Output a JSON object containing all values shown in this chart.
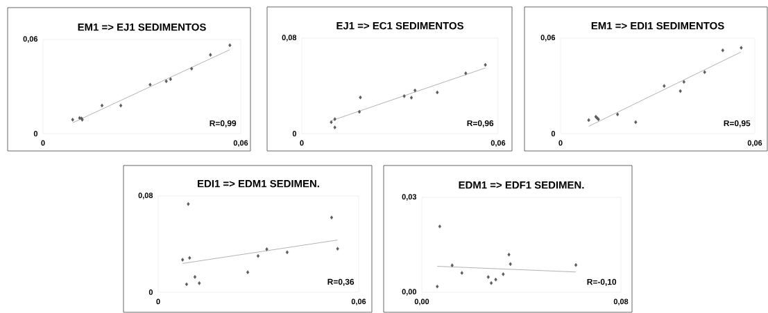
{
  "chart_data": [
    {
      "type": "scatter",
      "title": "EM1 => EJ1 SEDIMENTOS",
      "marker": "diamond",
      "xlim": [
        0,
        0.06
      ],
      "ylim": [
        0,
        0.06
      ],
      "xticks": [
        0,
        {
          "value": 0.06,
          "label": "0,06"
        }
      ],
      "yticks": [
        0,
        {
          "value": 0.06,
          "label": "0,06"
        }
      ],
      "annotations": [
        "R=0,99"
      ],
      "series": [
        {
          "color": "#5a5a5a",
          "x": [
            0.009,
            0.0111,
            0.0117,
            0.0119,
            0.0179,
            0.0236,
            0.0325,
            0.0374,
            0.0387,
            0.0451,
            0.0508,
            0.0567
          ],
          "values": [
            0.0089,
            0.01,
            0.0097,
            0.0089,
            0.0179,
            0.0179,
            0.0312,
            0.0334,
            0.0347,
            0.0414,
            0.0502,
            0.0563
          ]
        },
        {
          "type": "line",
          "color": "#7f7f7f",
          "marker": "none",
          "x": [
            0.009,
            0.0567
          ],
          "values": [
            0.0069,
            0.0535
          ]
        }
      ]
    },
    {
      "type": "scatter",
      "title": "EJ1 => EC1 SEDIMENTOS",
      "marker": "diamond",
      "xlim": [
        0,
        0.06
      ],
      "ylim": [
        0,
        0.08
      ],
      "xticks": [
        0,
        {
          "value": 0.06,
          "label": "0,06"
        }
      ],
      "yticks": [
        0,
        {
          "value": 0.08,
          "label": "0,08"
        }
      ],
      "annotations": [
        "R=0,96"
      ],
      "series": [
        {
          "color": "#5a5a5a",
          "x": [
            0.009,
            0.0101,
            0.0101,
            0.0179,
            0.0176,
            0.0313,
            0.0335,
            0.0346,
            0.0414,
            0.0501,
            0.0561
          ],
          "values": [
            0.0096,
            0.0121,
            0.0052,
            0.0303,
            0.0183,
            0.0314,
            0.0301,
            0.0362,
            0.0345,
            0.0505,
            0.0576
          ]
        },
        {
          "type": "line",
          "color": "#7f7f7f",
          "marker": "none",
          "x": [
            0.009,
            0.0561
          ],
          "values": [
            0.0108,
            0.055
          ]
        }
      ]
    },
    {
      "type": "scatter",
      "title": "EM1 => EDI1 SEDIMENTOS",
      "marker": "diamond",
      "xlim": [
        0,
        0.06
      ],
      "ylim": [
        0,
        0.06
      ],
      "xticks": [
        0,
        {
          "value": 0.06,
          "label": "0,06"
        }
      ],
      "yticks": [
        0,
        {
          "value": 0.06,
          "label": "0,06"
        }
      ],
      "annotations": [
        "R=0,95"
      ],
      "series": [
        {
          "color": "#5a5a5a",
          "x": [
            0.0087,
            0.0109,
            0.0113,
            0.0117,
            0.0176,
            0.0232,
            0.032,
            0.037,
            0.0381,
            0.0445,
            0.0501,
            0.0558
          ],
          "values": [
            0.0085,
            0.0106,
            0.0098,
            0.009,
            0.0121,
            0.0072,
            0.0299,
            0.0267,
            0.0325,
            0.0386,
            0.0523,
            0.0539
          ]
        },
        {
          "type": "line",
          "color": "#7f7f7f",
          "marker": "none",
          "x": [
            0.0087,
            0.0558
          ],
          "values": [
            0.0046,
            0.0513
          ]
        }
      ]
    },
    {
      "type": "scatter",
      "title": "EDI1 => EDM1 SEDIMEN.",
      "marker": "diamond",
      "xlim": [
        0,
        0.06
      ],
      "ylim": [
        0,
        0.08
      ],
      "xticks": [
        0,
        {
          "value": 0.06,
          "label": "0,06"
        }
      ],
      "yticks": [
        0,
        {
          "value": 0.08,
          "label": "0,08"
        }
      ],
      "annotations": [
        "R=0,36"
      ],
      "series": [
        {
          "color": "#5a5a5a",
          "x": [
            0.0073,
            0.009,
            0.0094,
            0.0085,
            0.011,
            0.0123,
            0.0268,
            0.0299,
            0.0325,
            0.0386,
            0.0519,
            0.0537
          ],
          "values": [
            0.027,
            0.0733,
            0.0285,
            0.0066,
            0.0127,
            0.0075,
            0.0166,
            0.0301,
            0.0357,
            0.0332,
            0.0621,
            0.0361
          ]
        },
        {
          "type": "line",
          "color": "#7f7f7f",
          "marker": "none",
          "x": [
            0.0073,
            0.0537
          ],
          "values": [
            0.0239,
            0.0434
          ]
        }
      ]
    },
    {
      "type": "scatter",
      "title": "EDM1 => EDF1 SEDIMEN.",
      "marker": "diamond",
      "xlim": [
        0,
        0.08
      ],
      "ylim": [
        0,
        0.03
      ],
      "xticks": [
        {
          "value": 0,
          "label": "0,00"
        },
        {
          "value": 0.08,
          "label": "0,08"
        }
      ],
      "yticks": [
        {
          "value": 0,
          "label": "0,00"
        },
        {
          "value": 0.03,
          "label": "0,03"
        }
      ],
      "annotations": [
        "R=-0,10"
      ],
      "series": [
        {
          "color": "#5a5a5a",
          "x": [
            0.0062,
            0.0072,
            0.0122,
            0.0161,
            0.0267,
            0.0279,
            0.0297,
            0.0327,
            0.035,
            0.0356,
            0.0619
          ],
          "values": [
            0.0018,
            0.0208,
            0.0085,
            0.0061,
            0.0048,
            0.0029,
            0.004,
            0.0057,
            0.0119,
            0.0089,
            0.0086
          ]
        },
        {
          "type": "line",
          "color": "#7f7f7f",
          "marker": "none",
          "x": [
            0.0062,
            0.0619
          ],
          "values": [
            0.0082,
            0.0064
          ]
        }
      ]
    }
  ]
}
